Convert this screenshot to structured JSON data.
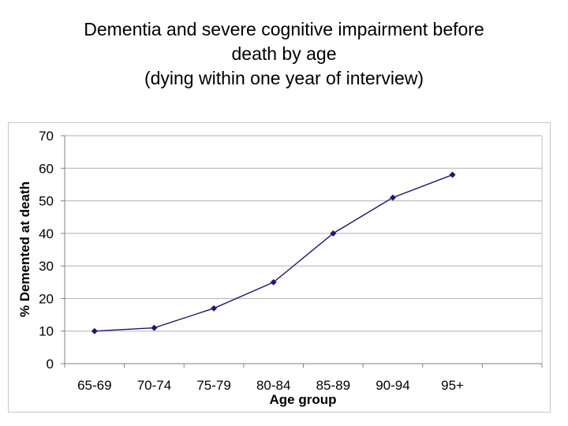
{
  "title": {
    "line1": "Dementia and severe cognitive impairment before",
    "line2": "death by age",
    "line3": "(dying within one year of interview)"
  },
  "chart_data": {
    "type": "line",
    "categories": [
      "65-69",
      "70-74",
      "75-79",
      "80-84",
      "85-89",
      "90-94",
      "95+"
    ],
    "series": [
      {
        "values": [
          10,
          11,
          17,
          25,
          40,
          51,
          58
        ]
      }
    ],
    "xlabel": "Age group",
    "ylabel": "% Demented at death",
    "ylim": [
      0,
      70
    ],
    "yticks": [
      0,
      10,
      20,
      30,
      40,
      50,
      60,
      70
    ],
    "grid": true,
    "colors": {
      "line": "#1a1a6e",
      "marker": "#1a1a6e",
      "grid": "#b0b0b0"
    }
  }
}
